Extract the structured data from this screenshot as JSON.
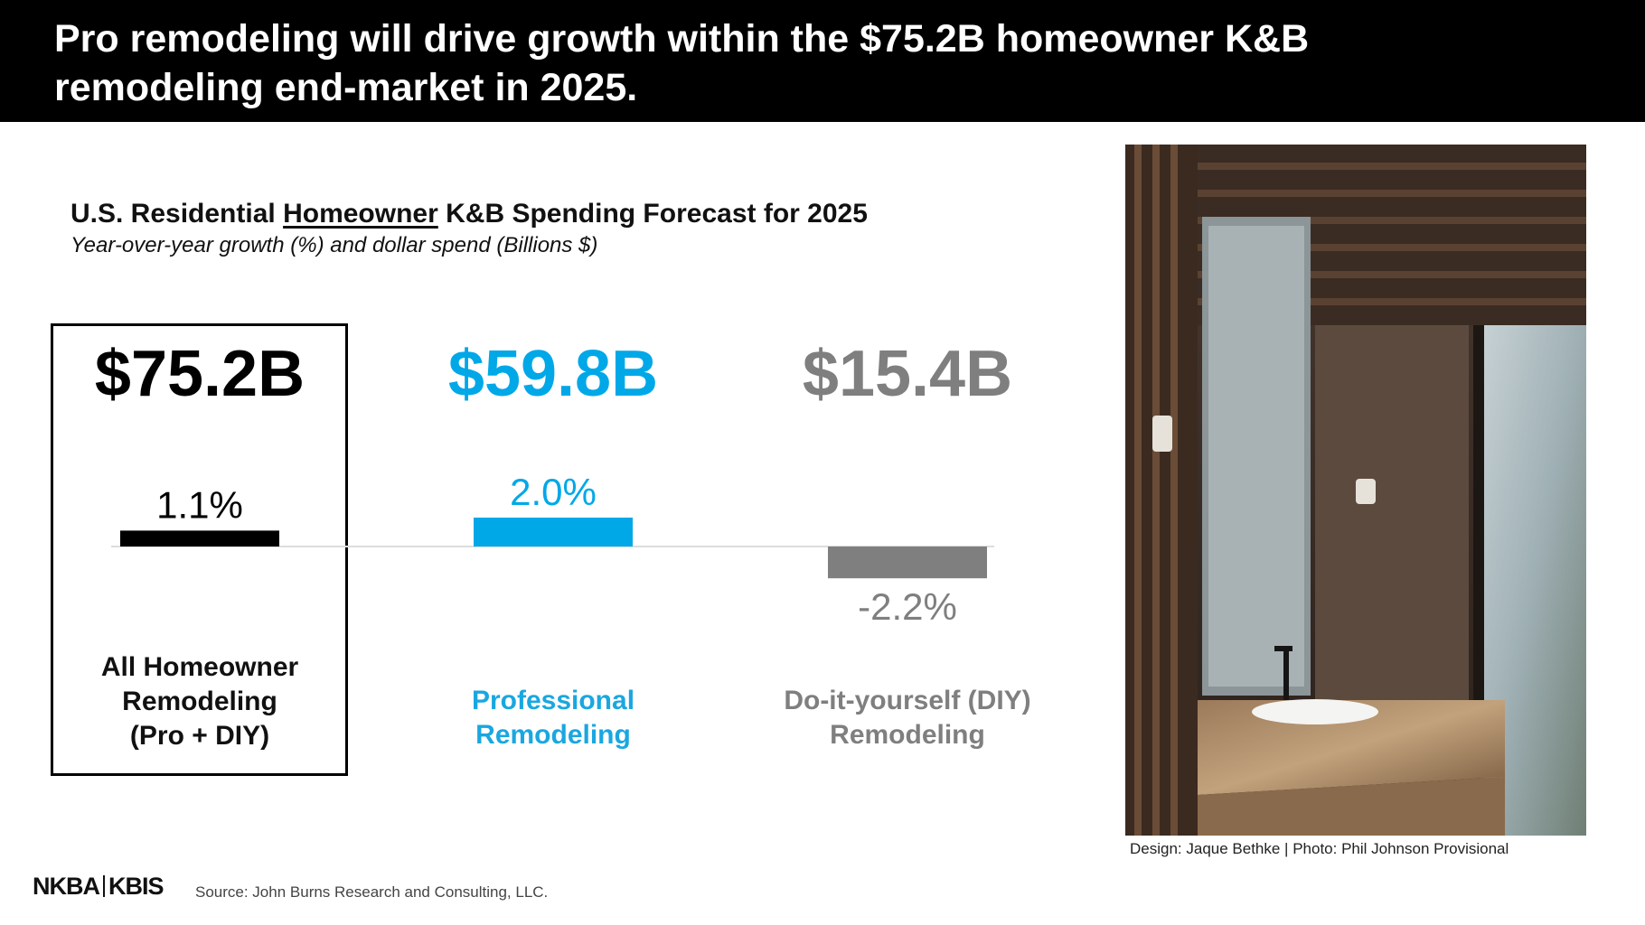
{
  "header": {
    "title": "Pro remodeling will drive growth within the $75.2B homeowner K&B remodeling end-market in 2025."
  },
  "chart_data": {
    "type": "bar",
    "title_parts": [
      "U.S. Residential ",
      "Homeowner",
      " K&B Spending Forecast for 2025"
    ],
    "subtitle": "Year-over-year growth (%) and dollar spend (Billions $)",
    "categories": [
      [
        "All Homeowner",
        "Remodeling",
        "(Pro + DIY)"
      ],
      [
        "Professional",
        "Remodeling"
      ],
      [
        "Do-it-yourself (DIY)",
        "Remodeling"
      ]
    ],
    "spend_labels": [
      "$75.2B",
      "$59.8B",
      "$15.4B"
    ],
    "spend_billions": [
      75.2,
      59.8,
      15.4
    ],
    "values": [
      1.1,
      2.0,
      -2.2
    ],
    "value_labels": [
      "1.1%",
      "2.0%",
      "-2.2%"
    ],
    "colors": [
      "#000000",
      "#00a8e8",
      "#7f7f7f"
    ],
    "highlighted_category": 0
  },
  "photo": {
    "credit": "Design: Jaque Bethke | Photo: Phil Johnson Provisional"
  },
  "footer": {
    "logo_left": "NKBA",
    "logo_right": "KBIS",
    "source": "Source: John Burns Research and Consulting, LLC."
  }
}
